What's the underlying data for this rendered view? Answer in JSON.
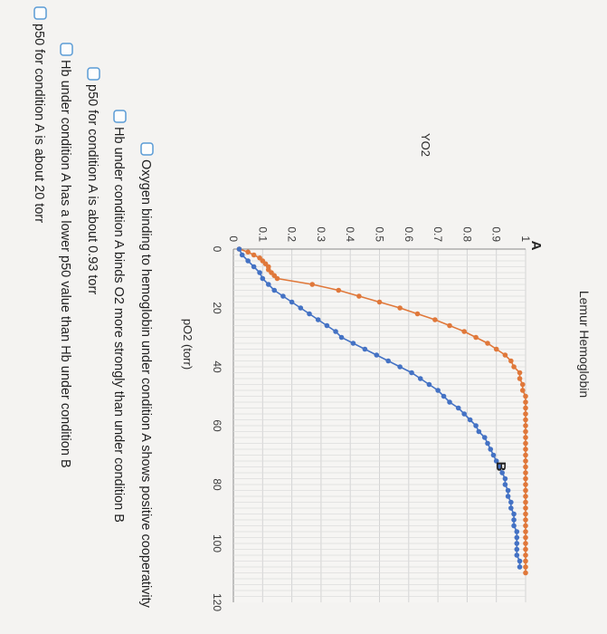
{
  "chart_data": {
    "type": "scatter",
    "title": "Lemur Hemoglobin",
    "xlabel": "pO2 (torr)",
    "ylabel": "YO2",
    "xlim": [
      0,
      120
    ],
    "ylim": [
      0,
      1
    ],
    "x_ticks": [
      "0",
      "20",
      "40",
      "60",
      "80",
      "100",
      "120"
    ],
    "y_ticks": [
      "0",
      "0.1",
      "0.2",
      "0.3",
      "0.4",
      "0.5",
      "0.6",
      "0.7",
      "0.8",
      "0.9",
      "1"
    ],
    "grid": true,
    "series": [
      {
        "name": "A",
        "color": "#e0783a",
        "x": [
          0,
          1,
          2,
          3,
          4,
          5,
          6,
          7,
          8,
          9,
          10,
          12,
          14,
          16,
          18,
          20,
          22,
          24,
          26,
          28,
          30,
          32,
          34,
          36,
          38,
          40,
          42,
          44,
          46,
          48,
          50,
          52,
          54,
          56,
          58,
          60,
          62,
          64,
          66,
          68,
          70,
          72,
          74,
          76,
          78,
          80,
          82,
          84,
          86,
          88,
          90,
          92,
          94,
          96,
          98,
          100,
          102,
          104,
          106,
          108,
          110
        ],
        "y": [
          0.02,
          0.05,
          0.07,
          0.09,
          0.1,
          0.11,
          0.12,
          0.12,
          0.13,
          0.14,
          0.15,
          0.27,
          0.36,
          0.43,
          0.5,
          0.57,
          0.63,
          0.69,
          0.74,
          0.79,
          0.83,
          0.87,
          0.9,
          0.93,
          0.95,
          0.96,
          0.98,
          0.98,
          0.99,
          0.99,
          1,
          1,
          1,
          1,
          1,
          1,
          1,
          1,
          1,
          1,
          1,
          1,
          1,
          1,
          1,
          1,
          1,
          1,
          1,
          1,
          1,
          1,
          1,
          1,
          1,
          1,
          1,
          1,
          1,
          1,
          1
        ]
      },
      {
        "name": "B",
        "color": "#4472c4",
        "x": [
          0,
          2,
          4,
          6,
          8,
          10,
          12,
          14,
          16,
          18,
          20,
          22,
          24,
          26,
          28,
          30,
          32,
          34,
          36,
          38,
          40,
          42,
          44,
          46,
          48,
          50,
          52,
          54,
          56,
          58,
          60,
          62,
          64,
          66,
          68,
          70,
          72,
          74,
          76,
          78,
          80,
          82,
          84,
          86,
          88,
          90,
          92,
          94,
          96,
          98,
          100,
          102,
          104,
          106,
          108
        ],
        "y": [
          0.02,
          0.03,
          0.05,
          0.07,
          0.09,
          0.1,
          0.12,
          0.14,
          0.17,
          0.2,
          0.23,
          0.26,
          0.29,
          0.32,
          0.35,
          0.37,
          0.41,
          0.45,
          0.49,
          0.53,
          0.57,
          0.61,
          0.64,
          0.67,
          0.7,
          0.72,
          0.74,
          0.77,
          0.79,
          0.81,
          0.83,
          0.84,
          0.86,
          0.87,
          0.88,
          0.89,
          0.9,
          0.91,
          0.92,
          0.93,
          0.93,
          0.94,
          0.94,
          0.95,
          0.95,
          0.96,
          0.96,
          0.96,
          0.97,
          0.97,
          0.97,
          0.97,
          0.97,
          0.98,
          0.98
        ]
      }
    ],
    "annotations": [
      "A",
      "B"
    ]
  },
  "question": {
    "options": [
      "Oxygen binding to hemoglobin under condition A shows positive cooperativity",
      "Hb under condition A binds O2 more strongly than under condition B",
      "p50 for condition A is about 0.93 torr",
      "Hb under condition A has a lower p50 value than Hb under condition B",
      "p50 for condition A is about 20 torr"
    ]
  }
}
